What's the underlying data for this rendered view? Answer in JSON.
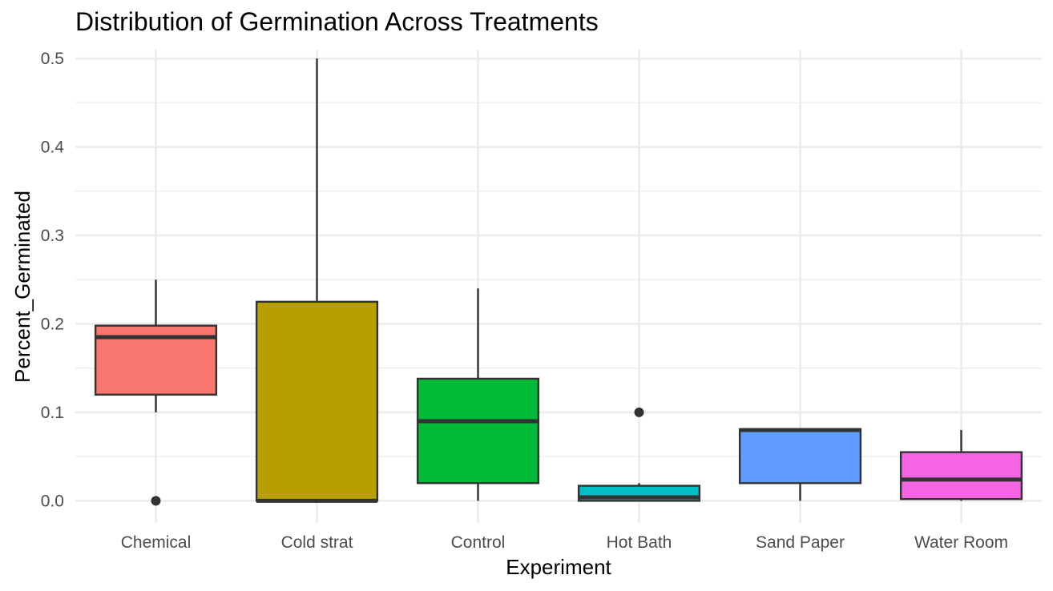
{
  "chart_data": {
    "type": "box",
    "title": "Distribution of Germination Across Treatments",
    "xlabel": "Experiment",
    "ylabel": "Percent_Germinated",
    "ylim": [
      -0.025,
      0.51
    ],
    "y_ticks": [
      0.0,
      0.1,
      0.2,
      0.3,
      0.4,
      0.5
    ],
    "y_tick_labels": [
      "0.0",
      "0.1",
      "0.2",
      "0.3",
      "0.4",
      "0.5"
    ],
    "y_minor_ticks": [
      0.05,
      0.15,
      0.25,
      0.35,
      0.45
    ],
    "grid": true,
    "legend": "none",
    "categories": [
      "Chemical",
      "Cold strat",
      "Control",
      "Hot Bath",
      "Sand Paper",
      "Water Room"
    ],
    "boxes": [
      {
        "category": "Chemical",
        "whisker_low": 0.1,
        "q1": 0.12,
        "median": 0.185,
        "q3": 0.198,
        "whisker_high": 0.25,
        "outliers": [
          0.0
        ],
        "color": "#F8766D"
      },
      {
        "category": "Cold strat",
        "whisker_low": 0.0,
        "q1": 0.0,
        "median": 0.0,
        "q3": 0.225,
        "whisker_high": 0.5,
        "outliers": [],
        "color": "#B79F00"
      },
      {
        "category": "Control",
        "whisker_low": 0.0,
        "q1": 0.02,
        "median": 0.09,
        "q3": 0.138,
        "whisker_high": 0.24,
        "outliers": [],
        "color": "#00BA38"
      },
      {
        "category": "Hot Bath",
        "whisker_low": 0.0,
        "q1": 0.0,
        "median": 0.004,
        "q3": 0.017,
        "whisker_high": 0.02,
        "outliers": [
          0.1
        ],
        "color": "#00BFC4"
      },
      {
        "category": "Sand Paper",
        "whisker_low": 0.0,
        "q1": 0.02,
        "median": 0.08,
        "q3": 0.081,
        "whisker_high": 0.081,
        "outliers": [],
        "color": "#619CFF"
      },
      {
        "category": "Water Room",
        "whisker_low": 0.0,
        "q1": 0.002,
        "median": 0.024,
        "q3": 0.055,
        "whisker_high": 0.08,
        "outliers": [],
        "color": "#F564E3"
      }
    ]
  }
}
